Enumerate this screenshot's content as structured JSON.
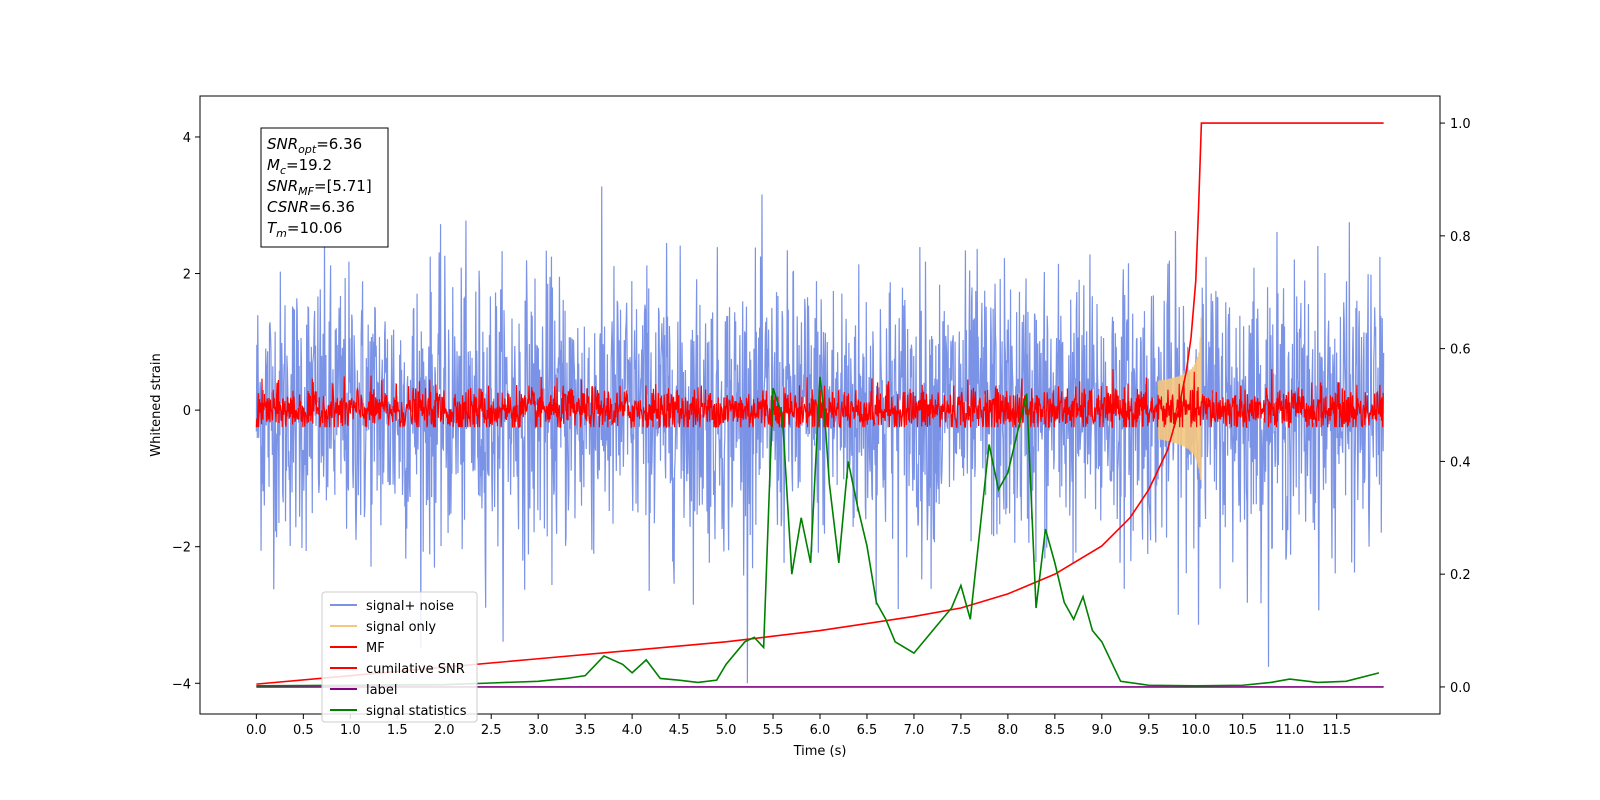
{
  "chart_data": {
    "type": "line",
    "xlabel": "Time (s)",
    "ylabel": "Whitened strain",
    "xlim": [
      -0.6,
      12.6
    ],
    "ylim": [
      -4.45,
      4.6
    ],
    "y2lim": [
      -0.048,
      1.048
    ],
    "x_ticks": [
      0.0,
      0.5,
      1.0,
      1.5,
      2.0,
      2.5,
      3.0,
      3.5,
      4.0,
      4.5,
      5.0,
      5.5,
      6.0,
      6.5,
      7.0,
      7.5,
      8.0,
      8.5,
      9.0,
      9.5,
      10.0,
      10.5,
      11.0,
      11.5
    ],
    "x_tick_labels": [
      "0.0",
      "0.5",
      "1.0",
      "1.5",
      "2.0",
      "2.5",
      "3.0",
      "3.5",
      "4.0",
      "4.5",
      "5.0",
      "5.5",
      "6.0",
      "6.5",
      "7.0",
      "7.5",
      "8.0",
      "8.5",
      "9.0",
      "9.5",
      "10.0",
      "10.5",
      "11.0",
      "11.5"
    ],
    "y_ticks": [
      -4,
      -2,
      0,
      2,
      4
    ],
    "y_tick_labels": [
      "−4",
      "−2",
      "0",
      "2",
      "4"
    ],
    "y2_ticks": [
      0.0,
      0.2,
      0.4,
      0.6,
      0.8,
      1.0
    ],
    "y2_tick_labels": [
      "0.0",
      "0.2",
      "0.4",
      "0.6",
      "0.8",
      "1.0"
    ],
    "grid": false,
    "legend_position": "lower-left",
    "series": [
      {
        "name": "signal+ noise",
        "color": "#7b93e6",
        "axis": "left",
        "kind": "noise",
        "t_range": [
          0.0,
          12.0
        ],
        "amplitude_std": 1.0,
        "range": [
          -4.0,
          4.15
        ]
      },
      {
        "name": "signal only",
        "color": "#f5c77e",
        "axis": "left",
        "kind": "chirp",
        "t_range": [
          9.6,
          10.06
        ],
        "peak_amplitude": 1.4,
        "merger_time": 10.06
      },
      {
        "name": "MF",
        "color": "#ff0000",
        "axis": "left",
        "kind": "noise",
        "t_range": [
          0.0,
          12.0
        ],
        "amplitude_std": 0.17,
        "range": [
          -0.25,
          0.6
        ]
      },
      {
        "name": "cumilative SNR",
        "color": "#ff0000",
        "axis": "right",
        "x": [
          0.0,
          1.0,
          2.0,
          3.0,
          4.0,
          5.0,
          6.0,
          7.0,
          7.5,
          8.0,
          8.5,
          9.0,
          9.3,
          9.5,
          9.7,
          9.8,
          9.9,
          9.95,
          10.0,
          10.03,
          10.06,
          12.0
        ],
        "y": [
          0.005,
          0.02,
          0.035,
          0.05,
          0.065,
          0.08,
          0.1,
          0.125,
          0.14,
          0.165,
          0.2,
          0.25,
          0.3,
          0.35,
          0.42,
          0.48,
          0.56,
          0.62,
          0.72,
          0.85,
          1.0,
          1.0
        ]
      },
      {
        "name": "label",
        "color": "#800080",
        "axis": "right",
        "x": [
          0.0,
          12.0
        ],
        "y": [
          0.0,
          0.0
        ]
      },
      {
        "name": "signal statistics",
        "color": "#008000",
        "axis": "right",
        "x": [
          0.0,
          1.0,
          2.0,
          2.5,
          3.0,
          3.3,
          3.5,
          3.7,
          3.9,
          4.0,
          4.15,
          4.3,
          4.5,
          4.7,
          4.9,
          5.0,
          5.2,
          5.3,
          5.4,
          5.5,
          5.6,
          5.7,
          5.8,
          5.9,
          6.0,
          6.05,
          6.1,
          6.2,
          6.3,
          6.4,
          6.5,
          6.6,
          6.7,
          6.8,
          7.0,
          7.2,
          7.4,
          7.5,
          7.6,
          7.8,
          7.9,
          8.0,
          8.2,
          8.3,
          8.4,
          8.5,
          8.6,
          8.7,
          8.8,
          8.9,
          9.0,
          9.2,
          9.5,
          10.0,
          10.5,
          10.8,
          11.0,
          11.3,
          11.6,
          11.95
        ],
        "y": [
          0.002,
          0.003,
          0.004,
          0.007,
          0.01,
          0.015,
          0.02,
          0.055,
          0.04,
          0.025,
          0.048,
          0.015,
          0.012,
          0.008,
          0.012,
          0.04,
          0.08,
          0.088,
          0.07,
          0.53,
          0.48,
          0.2,
          0.3,
          0.22,
          0.55,
          0.48,
          0.36,
          0.22,
          0.4,
          0.32,
          0.25,
          0.15,
          0.12,
          0.08,
          0.06,
          0.1,
          0.14,
          0.18,
          0.12,
          0.43,
          0.35,
          0.38,
          0.52,
          0.14,
          0.28,
          0.22,
          0.15,
          0.12,
          0.16,
          0.1,
          0.08,
          0.01,
          0.003,
          0.002,
          0.003,
          0.008,
          0.014,
          0.008,
          0.01,
          0.025
        ]
      }
    ],
    "annotation_lines": [
      {
        "label": "SNR",
        "sub": "opt",
        "value": "=6.36"
      },
      {
        "label": "M",
        "sub": "c",
        "value": "=19.2"
      },
      {
        "label": "SNR",
        "sub": "MF",
        "value": "=[5.71]"
      },
      {
        "label": "CSNR",
        "sub": "",
        "value": "=6.36"
      },
      {
        "label": "T",
        "sub": "m",
        "value": "=10.06"
      }
    ]
  }
}
